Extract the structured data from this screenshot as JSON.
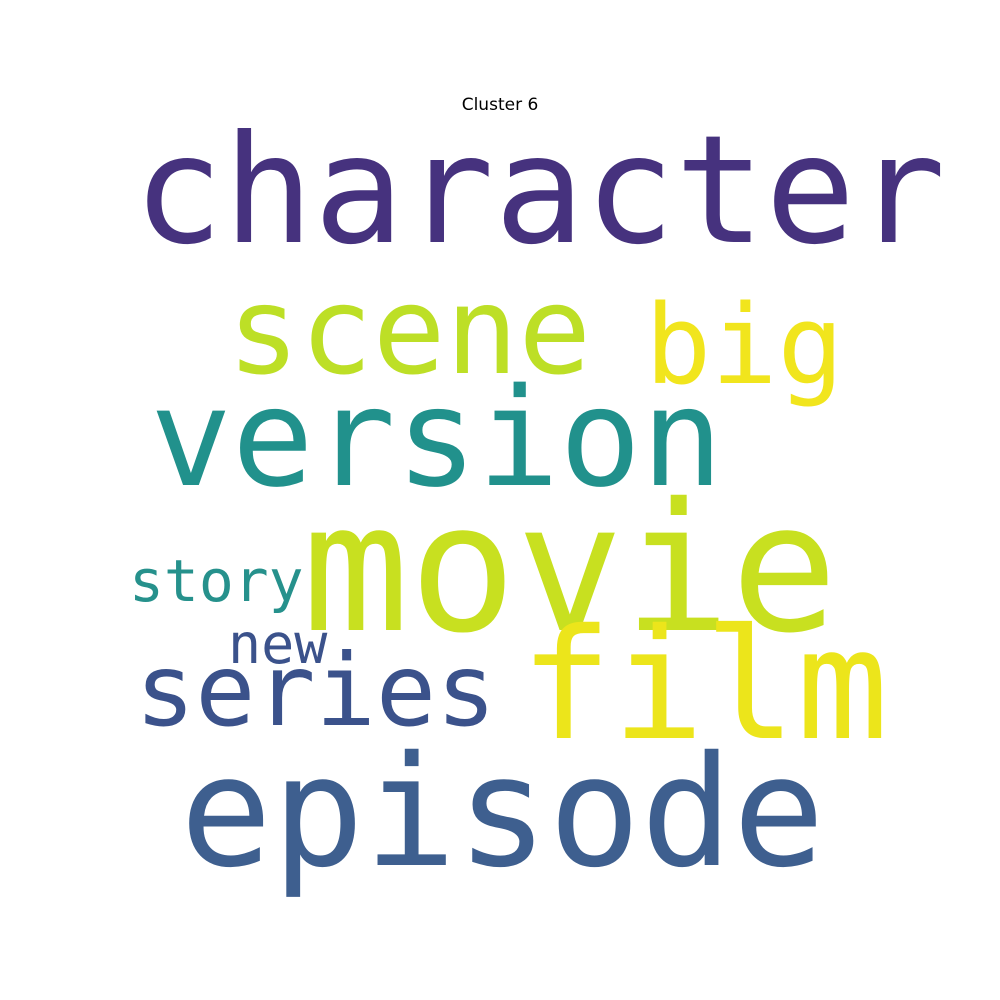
{
  "title": "Cluster 6",
  "words": {
    "character": {
      "text": "character",
      "color": "#46327e"
    },
    "scene": {
      "text": "scene",
      "color": "#bddf26"
    },
    "big": {
      "text": "big",
      "color": "#f1e51d"
    },
    "version": {
      "text": "version",
      "color": "#21918c"
    },
    "movie": {
      "text": "movie",
      "color": "#c8e020"
    },
    "story": {
      "text": "story",
      "color": "#26918c"
    },
    "new": {
      "text": "new",
      "color": "#3b528b"
    },
    "series": {
      "text": "series",
      "color": "#3b528b"
    },
    "film": {
      "text": "film",
      "color": "#ece51b"
    },
    "episode": {
      "text": "episode",
      "color": "#3e5f8f"
    }
  }
}
